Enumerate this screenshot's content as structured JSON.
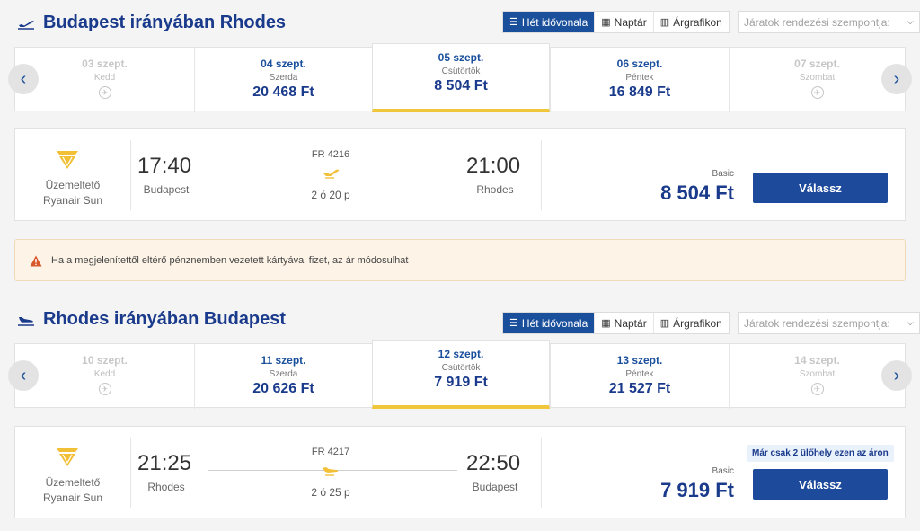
{
  "view_toggle": {
    "week": "Hét idővonala",
    "calendar": "Naptár",
    "chart": "Árgrafikon"
  },
  "sort_placeholder": "Járatok rendezési szempontja:",
  "outbound": {
    "title": "Budapest irányában Rhodes",
    "days": [
      {
        "date": "03 szept.",
        "weekday": "Kedd",
        "price": "",
        "available": false
      },
      {
        "date": "04 szept.",
        "weekday": "Szerda",
        "price": "20 468 Ft",
        "available": true
      },
      {
        "date": "05 szept.",
        "weekday": "Csütörtök",
        "price": "8 504 Ft",
        "available": true,
        "selected": true
      },
      {
        "date": "06 szept.",
        "weekday": "Péntek",
        "price": "16 849 Ft",
        "available": true
      },
      {
        "date": "07 szept.",
        "weekday": "Szombat",
        "price": "",
        "available": false
      }
    ],
    "flight": {
      "operator_label": "Üzemeltető",
      "operator": "Ryanair Sun",
      "depart_time": "17:40",
      "depart_city": "Budapest",
      "flight_number": "FR 4216",
      "duration": "2 ó 20 p",
      "arrive_time": "21:00",
      "arrive_city": "Rhodes",
      "fare_type": "Basic",
      "price": "8 504 Ft",
      "select_label": "Válassz"
    }
  },
  "warning_text": "Ha a megjelenítettől eltérő pénznemben vezetett kártyával fizet, az ár módosulhat",
  "inbound": {
    "title": "Rhodes irányában Budapest",
    "days": [
      {
        "date": "10 szept.",
        "weekday": "Kedd",
        "price": "",
        "available": false
      },
      {
        "date": "11 szept.",
        "weekday": "Szerda",
        "price": "20 626 Ft",
        "available": true
      },
      {
        "date": "12 szept.",
        "weekday": "Csütörtök",
        "price": "7 919 Ft",
        "available": true,
        "selected": true
      },
      {
        "date": "13 szept.",
        "weekday": "Péntek",
        "price": "21 527 Ft",
        "available": true
      },
      {
        "date": "14 szept.",
        "weekday": "Szombat",
        "price": "",
        "available": false
      }
    ],
    "flight": {
      "operator_label": "Üzemeltető",
      "operator": "Ryanair Sun",
      "depart_time": "21:25",
      "depart_city": "Rhodes",
      "flight_number": "FR 4217",
      "duration": "2 ó 25 p",
      "arrive_time": "22:50",
      "arrive_city": "Budapest",
      "fare_type": "Basic",
      "price": "7 919 Ft",
      "seat_notice": "Már csak 2 ülőhely ezen az áron",
      "select_label": "Válassz"
    }
  },
  "colors": {
    "brand_blue": "#1a3a8c",
    "button_blue": "#1d4a9b",
    "selected_underline": "#f0c63a",
    "warning_bg": "#fdf3e6",
    "plane_yellow": "#f2c037"
  }
}
